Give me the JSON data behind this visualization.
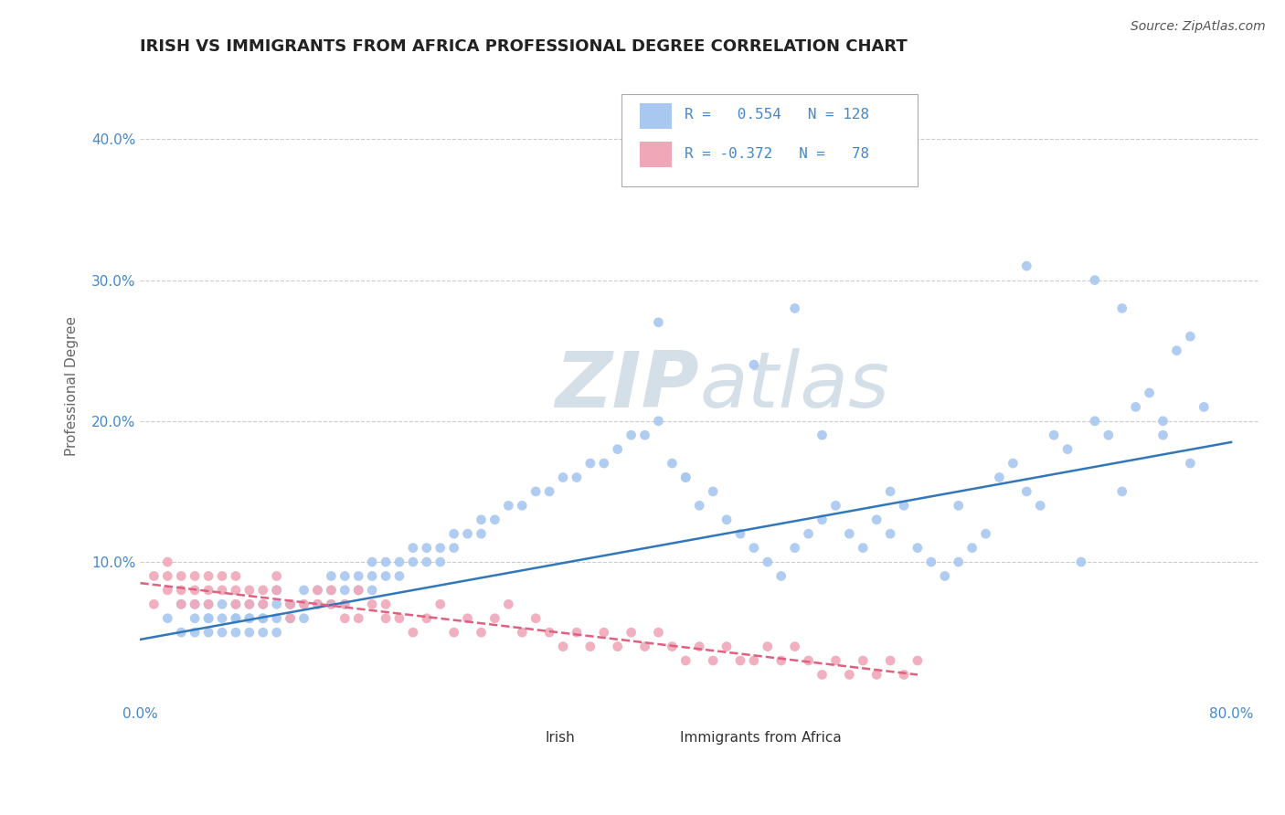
{
  "title": "IRISH VS IMMIGRANTS FROM AFRICA PROFESSIONAL DEGREE CORRELATION CHART",
  "source": "Source: ZipAtlas.com",
  "ylabel": "Professional Degree",
  "xlim": [
    0.0,
    0.82
  ],
  "ylim": [
    0.0,
    0.45
  ],
  "r_irish": 0.554,
  "n_irish": 128,
  "r_africa": -0.372,
  "n_africa": 78,
  "irish_color": "#a8c8f0",
  "africa_color": "#f0a8b8",
  "trend_irish_color": "#3377bb",
  "trend_africa_color": "#e06080",
  "watermark_zip": "ZIP",
  "watermark_atlas": "atlas",
  "watermark_color": "#d5dfe8",
  "legend_irish": "Irish",
  "legend_africa": "Immigrants from Africa",
  "irish_x": [
    0.02,
    0.03,
    0.03,
    0.04,
    0.04,
    0.04,
    0.05,
    0.05,
    0.05,
    0.05,
    0.06,
    0.06,
    0.06,
    0.07,
    0.07,
    0.07,
    0.07,
    0.08,
    0.08,
    0.08,
    0.08,
    0.09,
    0.09,
    0.09,
    0.09,
    0.1,
    0.1,
    0.1,
    0.1,
    0.11,
    0.11,
    0.11,
    0.12,
    0.12,
    0.12,
    0.13,
    0.13,
    0.14,
    0.14,
    0.14,
    0.15,
    0.15,
    0.15,
    0.16,
    0.16,
    0.17,
    0.17,
    0.17,
    0.18,
    0.18,
    0.19,
    0.19,
    0.2,
    0.2,
    0.21,
    0.21,
    0.22,
    0.22,
    0.23,
    0.23,
    0.24,
    0.25,
    0.25,
    0.26,
    0.27,
    0.28,
    0.29,
    0.3,
    0.31,
    0.32,
    0.33,
    0.34,
    0.35,
    0.36,
    0.37,
    0.38,
    0.39,
    0.4,
    0.41,
    0.42,
    0.43,
    0.44,
    0.45,
    0.46,
    0.47,
    0.48,
    0.49,
    0.5,
    0.51,
    0.52,
    0.53,
    0.54,
    0.55,
    0.56,
    0.57,
    0.58,
    0.59,
    0.6,
    0.61,
    0.62,
    0.63,
    0.64,
    0.65,
    0.66,
    0.67,
    0.68,
    0.69,
    0.7,
    0.71,
    0.72,
    0.73,
    0.74,
    0.75,
    0.76,
    0.77,
    0.78,
    0.65,
    0.7,
    0.72,
    0.75,
    0.77,
    0.5,
    0.55,
    0.6,
    0.45,
    0.48,
    0.38,
    0.4
  ],
  "irish_y": [
    0.06,
    0.05,
    0.07,
    0.06,
    0.07,
    0.05,
    0.06,
    0.07,
    0.05,
    0.06,
    0.06,
    0.05,
    0.07,
    0.06,
    0.07,
    0.05,
    0.06,
    0.06,
    0.07,
    0.05,
    0.06,
    0.06,
    0.07,
    0.05,
    0.06,
    0.06,
    0.07,
    0.08,
    0.05,
    0.07,
    0.06,
    0.07,
    0.07,
    0.06,
    0.08,
    0.07,
    0.08,
    0.08,
    0.07,
    0.09,
    0.08,
    0.09,
    0.07,
    0.08,
    0.09,
    0.09,
    0.08,
    0.1,
    0.09,
    0.1,
    0.1,
    0.09,
    0.1,
    0.11,
    0.1,
    0.11,
    0.11,
    0.1,
    0.11,
    0.12,
    0.12,
    0.13,
    0.12,
    0.13,
    0.14,
    0.14,
    0.15,
    0.15,
    0.16,
    0.16,
    0.17,
    0.17,
    0.18,
    0.19,
    0.19,
    0.2,
    0.17,
    0.16,
    0.14,
    0.15,
    0.13,
    0.12,
    0.11,
    0.1,
    0.09,
    0.11,
    0.12,
    0.13,
    0.14,
    0.12,
    0.11,
    0.13,
    0.12,
    0.14,
    0.11,
    0.1,
    0.09,
    0.1,
    0.11,
    0.12,
    0.16,
    0.17,
    0.15,
    0.14,
    0.19,
    0.18,
    0.1,
    0.2,
    0.19,
    0.15,
    0.21,
    0.22,
    0.19,
    0.25,
    0.26,
    0.21,
    0.31,
    0.3,
    0.28,
    0.2,
    0.17,
    0.19,
    0.15,
    0.14,
    0.24,
    0.28,
    0.27,
    0.16
  ],
  "africa_x": [
    0.01,
    0.01,
    0.02,
    0.02,
    0.02,
    0.03,
    0.03,
    0.03,
    0.04,
    0.04,
    0.04,
    0.05,
    0.05,
    0.05,
    0.06,
    0.06,
    0.07,
    0.07,
    0.07,
    0.08,
    0.08,
    0.09,
    0.09,
    0.1,
    0.1,
    0.11,
    0.11,
    0.12,
    0.13,
    0.13,
    0.14,
    0.14,
    0.15,
    0.15,
    0.16,
    0.16,
    0.17,
    0.18,
    0.18,
    0.19,
    0.2,
    0.21,
    0.22,
    0.23,
    0.24,
    0.25,
    0.26,
    0.27,
    0.28,
    0.29,
    0.3,
    0.31,
    0.32,
    0.33,
    0.34,
    0.35,
    0.36,
    0.37,
    0.38,
    0.39,
    0.4,
    0.41,
    0.42,
    0.43,
    0.44,
    0.45,
    0.46,
    0.47,
    0.48,
    0.49,
    0.5,
    0.51,
    0.52,
    0.53,
    0.54,
    0.55,
    0.56,
    0.57
  ],
  "africa_y": [
    0.07,
    0.09,
    0.08,
    0.1,
    0.09,
    0.07,
    0.09,
    0.08,
    0.08,
    0.09,
    0.07,
    0.07,
    0.08,
    0.09,
    0.08,
    0.09,
    0.08,
    0.07,
    0.09,
    0.07,
    0.08,
    0.08,
    0.07,
    0.08,
    0.09,
    0.07,
    0.06,
    0.07,
    0.07,
    0.08,
    0.07,
    0.08,
    0.06,
    0.07,
    0.06,
    0.08,
    0.07,
    0.06,
    0.07,
    0.06,
    0.05,
    0.06,
    0.07,
    0.05,
    0.06,
    0.05,
    0.06,
    0.07,
    0.05,
    0.06,
    0.05,
    0.04,
    0.05,
    0.04,
    0.05,
    0.04,
    0.05,
    0.04,
    0.05,
    0.04,
    0.03,
    0.04,
    0.03,
    0.04,
    0.03,
    0.03,
    0.04,
    0.03,
    0.04,
    0.03,
    0.02,
    0.03,
    0.02,
    0.03,
    0.02,
    0.03,
    0.02,
    0.03
  ],
  "irish_trendline_x": [
    0.0,
    0.8
  ],
  "irish_trendline_y": [
    0.045,
    0.185
  ],
  "africa_trendline_x": [
    0.0,
    0.57
  ],
  "africa_trendline_y": [
    0.085,
    0.02
  ],
  "background_color": "#ffffff",
  "grid_color": "#cccccc",
  "title_fontsize": 13,
  "axis_label_color": "#666666",
  "tick_label_color": "#4488cc"
}
